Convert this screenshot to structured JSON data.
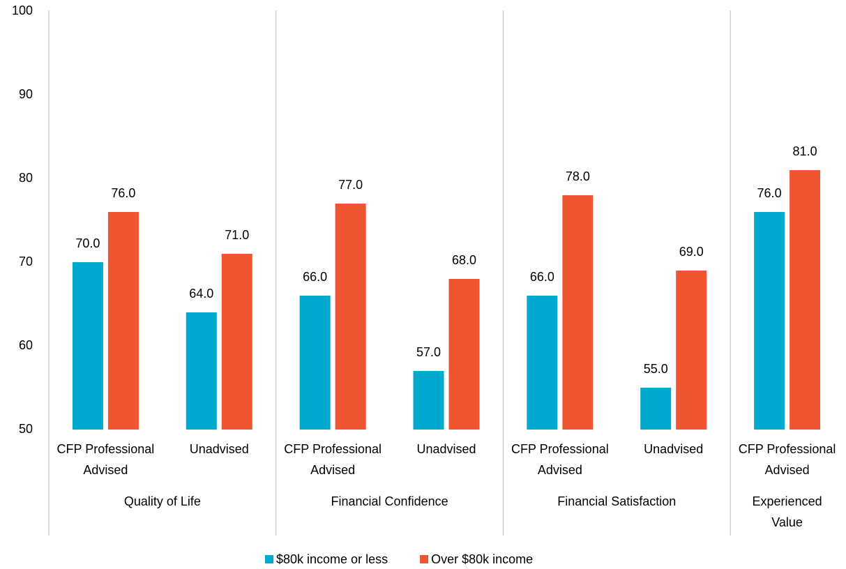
{
  "chart_data": {
    "type": "bar",
    "groups": [
      {
        "label": [
          "Quality of Life"
        ],
        "categories": [
          [
            "CFP Professional",
            "Advised"
          ],
          [
            "Unadvised"
          ]
        ]
      },
      {
        "label": [
          "Financial Confidence"
        ],
        "categories": [
          [
            "CFP Professional",
            "Advised"
          ],
          [
            "Unadvised"
          ]
        ]
      },
      {
        "label": [
          "Financial Satisfaction"
        ],
        "categories": [
          [
            "CFP Professional",
            "Advised"
          ],
          [
            "Unadvised"
          ]
        ]
      },
      {
        "label": [
          "Experienced",
          "Value"
        ],
        "categories": [
          [
            "CFP Professional",
            "Advised"
          ]
        ]
      }
    ],
    "series": [
      {
        "name": "$80k income or less",
        "color": "#00a9ce",
        "values": [
          70,
          64,
          66,
          57,
          66,
          55,
          76
        ],
        "value_labels": [
          "70.0",
          "64.0",
          "66.0",
          "57.0",
          "66.0",
          "55.0",
          "76.0"
        ]
      },
      {
        "name": "Over $80k income",
        "color": "#f05532",
        "values": [
          76,
          71,
          77,
          68,
          78,
          69,
          81
        ],
        "value_labels": [
          "76.0",
          "71.0",
          "77.0",
          "68.0",
          "78.0",
          "69.0",
          "81.0"
        ]
      }
    ],
    "ylim": [
      50,
      100
    ],
    "yticks": [
      50,
      60,
      70,
      80,
      90,
      100
    ],
    "grid": false,
    "legend": "bottom"
  }
}
